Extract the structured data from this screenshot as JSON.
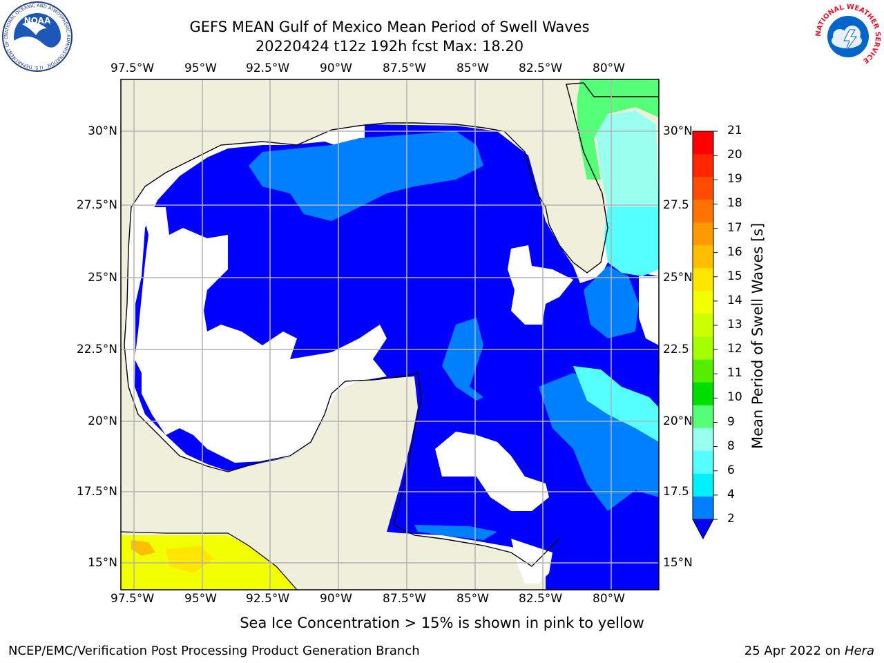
{
  "header": {
    "title_line1": "GEFS MEAN Gulf of Mexico Mean Period of Swell Waves",
    "title_line2": "20220424 t12z 192h fcst   Max: 18.20"
  },
  "logos": {
    "left": {
      "name": "NOAA",
      "ring_text": "NATIONAL OCEANIC AND ATMOSPHERIC ADMINISTRATION · U.S. DEPARTMENT OF COMMERCE"
    },
    "right": {
      "ring_text": "NATIONAL WEATHER SERVICE"
    }
  },
  "map": {
    "lon_labels": [
      "97.5°W",
      "95°W",
      "92.5°W",
      "90°W",
      "87.5°W",
      "85°W",
      "82.5°W",
      "80°W"
    ],
    "lat_labels_left": [
      "30°N",
      "27.5°N",
      "25°N",
      "22.5°N",
      "20°N",
      "17.5°N",
      "15°N"
    ],
    "lat_labels_right": [
      "30°N",
      "27.5",
      "25°N",
      "22.5",
      "20°N",
      "17.5",
      "15°N"
    ],
    "colors": {
      "land": "#efefdc",
      "grid": "#b4b4b4",
      "dark_blue": "#0000ff",
      "mid_blue": "#0080ff",
      "cyan": "#80ffff",
      "green": "#55ff55",
      "coast": "#000000"
    }
  },
  "colorbar": {
    "label": "Mean Period of Swell Waves [s]",
    "ticks": [
      "21",
      "20",
      "19",
      "18",
      "17",
      "16",
      "15",
      "14",
      "13",
      "12",
      "11",
      "10",
      "9",
      "8",
      "6",
      "4",
      "2"
    ],
    "colors_top_to_bottom": [
      "#ff0000",
      "#ff2600",
      "#ff4c00",
      "#ff7300",
      "#ff9900",
      "#ffbf00",
      "#ffe600",
      "#f2ff00",
      "#ccff00",
      "#a6ff00",
      "#55ee00",
      "#00dd00",
      "#55ff77",
      "#99ffee",
      "#55ffff",
      "#00f0ff",
      "#0080ff"
    ],
    "extend_color": "#0000ff"
  },
  "footer": {
    "note": "Sea Ice Concentration > 15% is shown in pink to yellow",
    "credit": "NCEP/EMC/Verification Post Processing Product Generation Branch",
    "date_prefix": "25 Apr 2022 on ",
    "machine": "Hera"
  }
}
